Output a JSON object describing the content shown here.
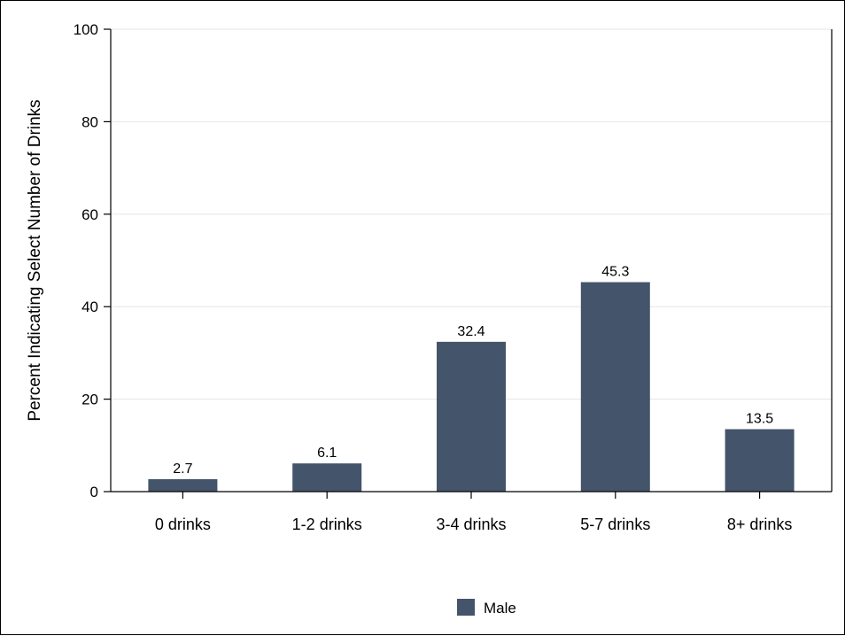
{
  "chart_data": {
    "type": "bar",
    "title": "",
    "xlabel": "",
    "ylabel": "Percent Indicating Select Number of Drinks",
    "categories": [
      "0 drinks",
      "1-2 drinks",
      "3-4 drinks",
      "5-7 drinks",
      "8+ drinks"
    ],
    "series": [
      {
        "name": "Male",
        "values": [
          2.7,
          6.1,
          32.4,
          45.3,
          13.5
        ],
        "color": "#44546a"
      }
    ],
    "data_labels": [
      "2.7",
      "6.1",
      "32.4",
      "45.3",
      "13.5"
    ],
    "ylim": [
      0,
      100
    ],
    "yticks": [
      0,
      20,
      40,
      60,
      80,
      100
    ],
    "ytick_labels": [
      "0",
      "20",
      "40",
      "60",
      "80",
      "100"
    ],
    "grid": true,
    "grid_color": "#e6e6e6",
    "legend_position": "bottom-center"
  }
}
